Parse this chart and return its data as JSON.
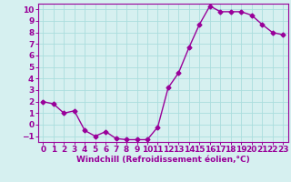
{
  "x": [
    0,
    1,
    2,
    3,
    4,
    5,
    6,
    7,
    8,
    9,
    10,
    11,
    12,
    13,
    14,
    15,
    16,
    17,
    18,
    19,
    20,
    21,
    22,
    23
  ],
  "y": [
    2.0,
    1.8,
    1.0,
    1.2,
    -0.5,
    -1.0,
    -0.6,
    -1.2,
    -1.3,
    -1.3,
    -1.3,
    -0.2,
    3.2,
    4.5,
    6.7,
    8.7,
    10.3,
    9.8,
    9.8,
    9.8,
    9.5,
    8.7,
    8.0,
    7.8
  ],
  "line_color": "#990099",
  "marker": "D",
  "marker_size": 2.5,
  "bg_color": "#d6f0f0",
  "grid_color": "#aadddd",
  "xlabel": "Windchill (Refroidissement éolien,°C)",
  "xlim": [
    -0.5,
    23.5
  ],
  "ylim": [
    -1.5,
    10.5
  ],
  "yticks": [
    -1,
    0,
    1,
    2,
    3,
    4,
    5,
    6,
    7,
    8,
    9,
    10
  ],
  "xticks": [
    0,
    1,
    2,
    3,
    4,
    5,
    6,
    7,
    8,
    9,
    10,
    11,
    12,
    13,
    14,
    15,
    16,
    17,
    18,
    19,
    20,
    21,
    22,
    23
  ],
  "axis_label_color": "#990099",
  "tick_label_color": "#990099",
  "spine_color": "#990099",
  "xlabel_fontsize": 6.5,
  "tick_fontsize": 6.5,
  "linewidth": 1.0
}
